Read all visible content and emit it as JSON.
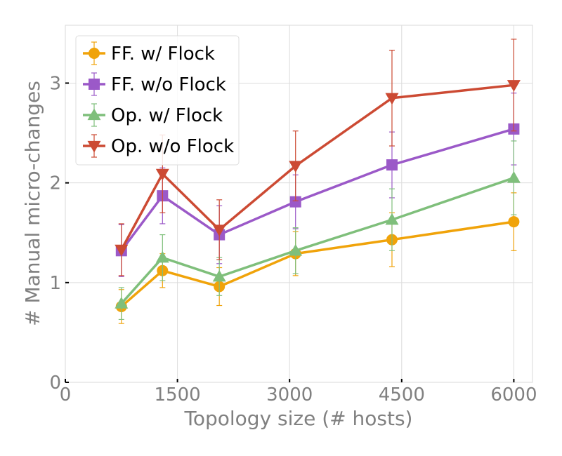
{
  "chart_data": {
    "type": "line",
    "xlabel": "Topology size (# hosts)",
    "ylabel": "# Manual micro-changes",
    "xlim": [
      0,
      6250
    ],
    "ylim": [
      0,
      3.58
    ],
    "xticks": [
      0,
      1500,
      3000,
      4500,
      6000
    ],
    "xtick_labels": [
      "0",
      "1500",
      "3000",
      "4500",
      "6000"
    ],
    "yticks": [
      0,
      1,
      2,
      3
    ],
    "ytick_labels": [
      "0",
      "1",
      "2",
      "3"
    ],
    "grid": true,
    "legend_position": "top-left",
    "x": [
      750,
      1300,
      2060,
      3080,
      4370,
      6000
    ],
    "series": [
      {
        "name": "FF. w/ Flock",
        "color": "#f0a30a",
        "marker": "circle",
        "values": [
          0.76,
          1.12,
          0.96,
          1.29,
          1.43,
          1.61
        ],
        "errors": [
          0.17,
          0.17,
          0.19,
          0.22,
          0.27,
          0.29
        ]
      },
      {
        "name": "FF. w/o Flock",
        "color": "#9b59c8",
        "marker": "square",
        "values": [
          1.32,
          1.87,
          1.48,
          1.81,
          2.18,
          2.54
        ],
        "errors": [
          0.26,
          0.28,
          0.29,
          0.27,
          0.33,
          0.36
        ]
      },
      {
        "name": "Op. w/ Flock",
        "color": "#7fbf7b",
        "marker": "triangle-up",
        "values": [
          0.79,
          1.25,
          1.06,
          1.32,
          1.63,
          2.05
        ],
        "errors": [
          0.16,
          0.23,
          0.19,
          0.23,
          0.31,
          0.37
        ]
      },
      {
        "name": "Op. w/o Flock",
        "color": "#cc4a33",
        "marker": "triangle-down",
        "values": [
          1.33,
          2.09,
          1.53,
          2.17,
          2.85,
          2.98
        ],
        "errors": [
          0.26,
          0.39,
          0.3,
          0.35,
          0.48,
          0.46
        ]
      }
    ]
  }
}
